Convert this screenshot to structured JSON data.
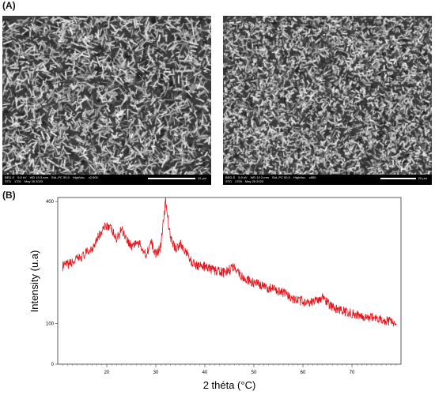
{
  "panels": {
    "a_label": "(A)",
    "b_label": "(B)"
  },
  "sem_images": [
    {
      "info_line1": [
        "BED-S",
        "5.0 kV",
        "WD 10.3 mm",
        "Std.-PC 50.0",
        "HighVac.",
        "x2,500"
      ],
      "info_line2": [
        "STD",
        "1701",
        "May 25 2023"
      ],
      "scale_label": "10 µm"
    },
    {
      "info_line1": [
        "BED-S",
        "5.0 kV",
        "WD 10.3 mm",
        "Std.-PC 50.0",
        "HighVac.",
        "x850"
      ],
      "info_line2": [
        "STD",
        "1700",
        "May 25 2023"
      ],
      "scale_label": "20 µm"
    }
  ],
  "chart_data": {
    "type": "line",
    "xlabel": "2 théta (°C)",
    "ylabel": "Intensity (u.a)",
    "xlim": [
      10,
      80
    ],
    "ylim": [
      0,
      410
    ],
    "xticks": [
      20,
      30,
      40,
      50,
      60,
      70
    ],
    "yticks": [
      0,
      100,
      400
    ],
    "line_color": "#e8141b",
    "series": [
      {
        "x": [
          11,
          13,
          15,
          17,
          18,
          19,
          20,
          21,
          22,
          23,
          24,
          25,
          26,
          27,
          28,
          29,
          30,
          31,
          32,
          33,
          34,
          35,
          36,
          37,
          38,
          40,
          42,
          44,
          46,
          48,
          50,
          52,
          54,
          56,
          58,
          60,
          62,
          64,
          66,
          68,
          70,
          72,
          74,
          76,
          78,
          79
        ],
        "y": [
          240,
          250,
          265,
          285,
          310,
          325,
          345,
          330,
          305,
          335,
          310,
          290,
          300,
          290,
          270,
          300,
          270,
          290,
          400,
          310,
          285,
          295,
          280,
          255,
          245,
          240,
          230,
          225,
          240,
          210,
          200,
          190,
          185,
          175,
          160,
          155,
          152,
          165,
          140,
          130,
          125,
          118,
          115,
          110,
          105,
          100
        ]
      }
    ]
  }
}
